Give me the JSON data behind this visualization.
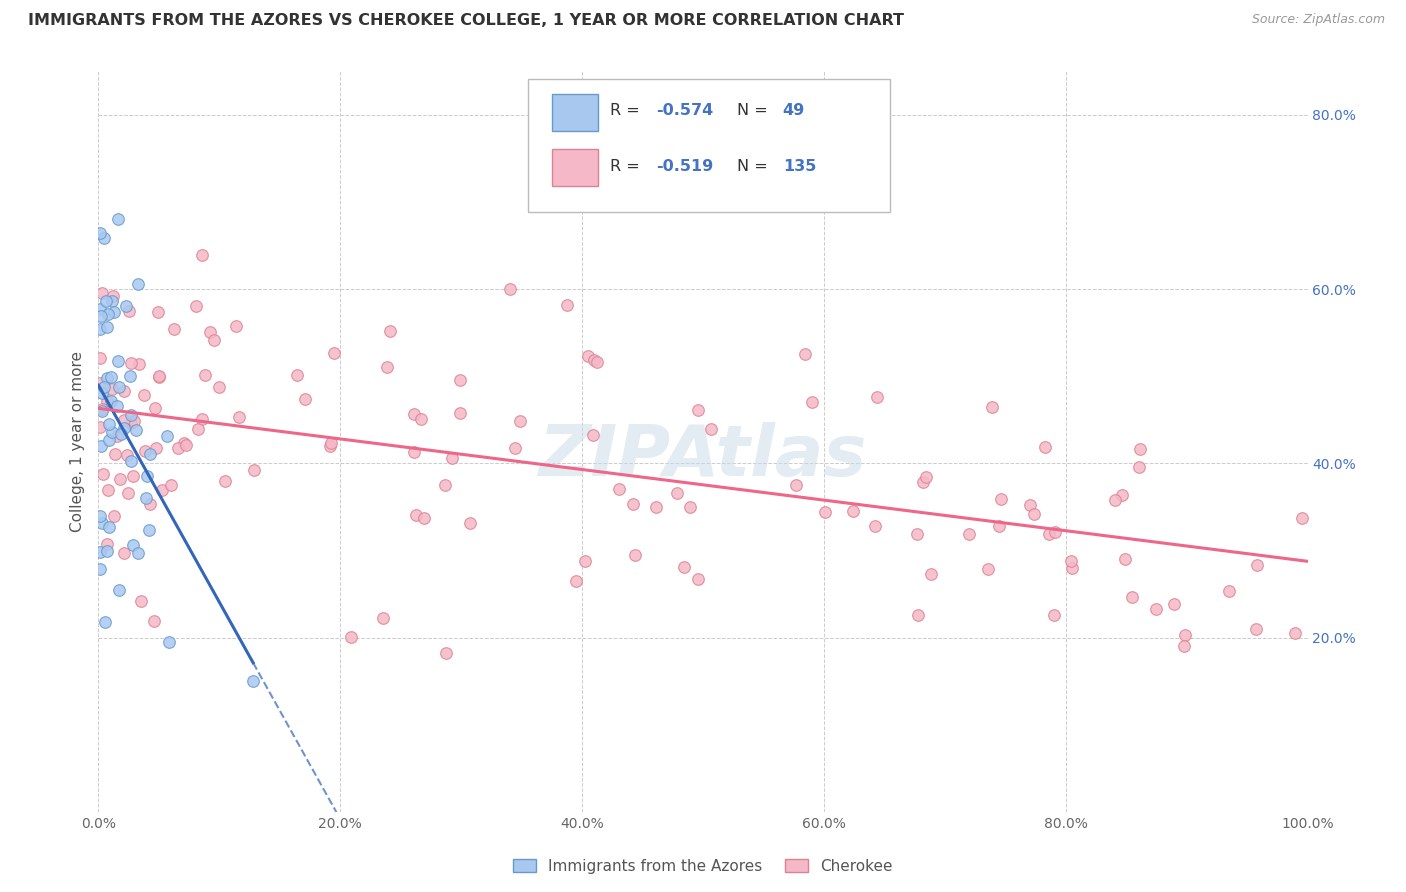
{
  "title": "IMMIGRANTS FROM THE AZORES VS CHEROKEE COLLEGE, 1 YEAR OR MORE CORRELATION CHART",
  "source_text": "Source: ZipAtlas.com",
  "ylabel": "College, 1 year or more",
  "xlim": [
    0.0,
    1.0
  ],
  "ylim": [
    0.0,
    0.85
  ],
  "x_tick_values": [
    0.0,
    0.2,
    0.4,
    0.6,
    0.8,
    1.0
  ],
  "x_tick_labels": [
    "0.0%",
    "20.0%",
    "40.0%",
    "60.0%",
    "80.0%",
    "100.0%"
  ],
  "y_tick_values": [
    0.2,
    0.4,
    0.6,
    0.8
  ],
  "y_tick_labels": [
    "20.0%",
    "40.0%",
    "60.0%",
    "80.0%"
  ],
  "legend_r1": "R = -0.574",
  "legend_n1": "49",
  "legend_r2": "R = -0.519",
  "legend_n2": "135",
  "color_blue_fill": "#A8C8F0",
  "color_blue_edge": "#6699CC",
  "color_pink_fill": "#F4B8C8",
  "color_pink_edge": "#E08090",
  "color_blue_line": "#3366BB",
  "color_pink_line": "#EE6688",
  "color_text_blue": "#4472C4",
  "color_grid": "#CCCCCC",
  "watermark_color": "#C8D8E8",
  "watermark_alpha": 0.5
}
